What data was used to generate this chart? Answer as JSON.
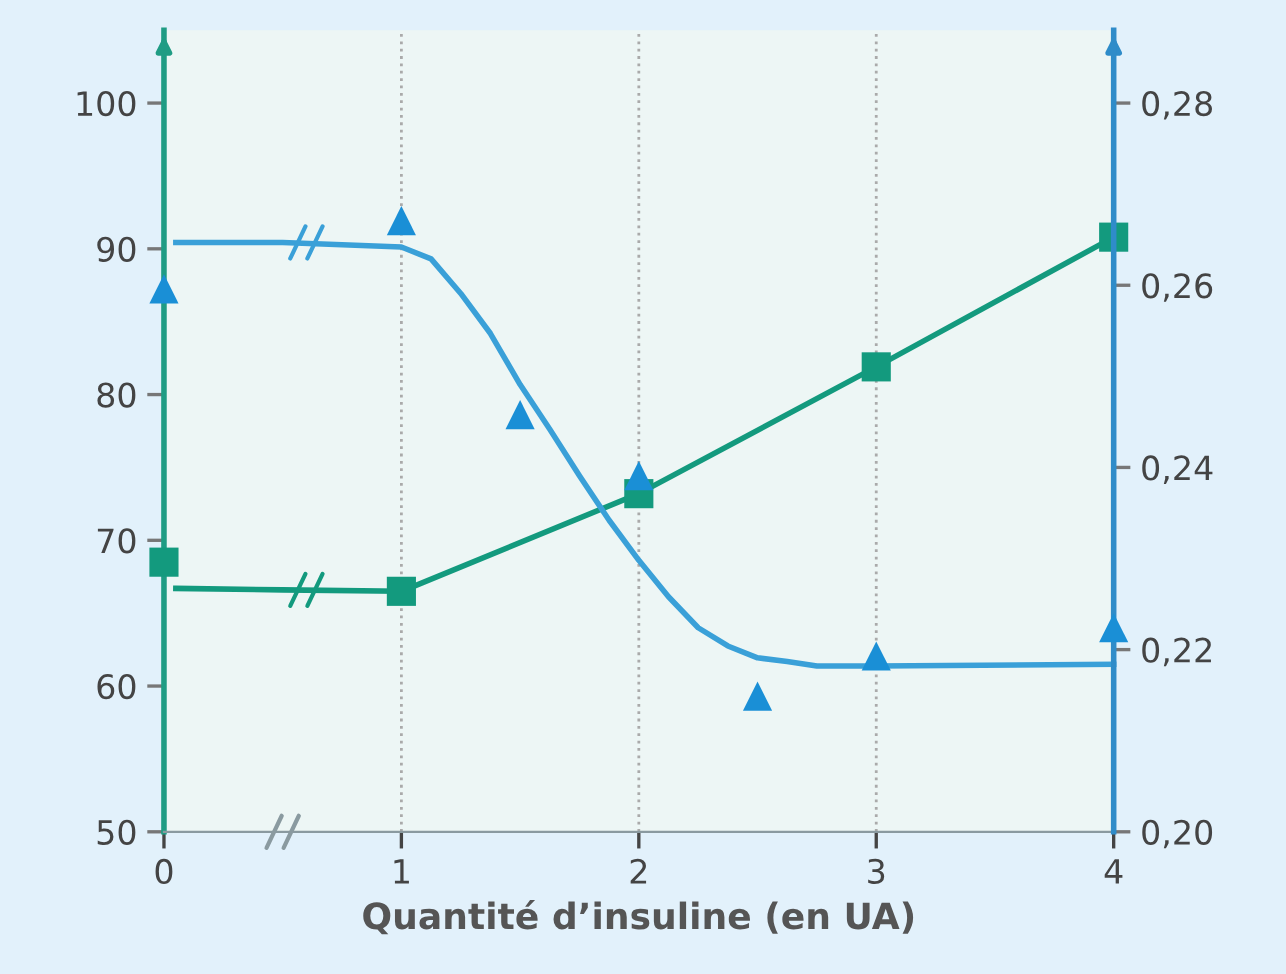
{
  "chart_data": {
    "type": "scatter",
    "xlabel": "Quantité d’insuline (en UA)",
    "xlim": [
      0,
      4
    ],
    "xticks": [
      0,
      1,
      2,
      3,
      4
    ],
    "ylim": [
      50,
      105
    ],
    "yticks": [
      50,
      60,
      70,
      80,
      90,
      100
    ],
    "y2lim": [
      0.2,
      0.288
    ],
    "y2ticks": [
      {
        "value": 0.2,
        "label": "0,20"
      },
      {
        "value": 0.22,
        "label": "0,22"
      },
      {
        "value": 0.24,
        "label": "0,24"
      },
      {
        "value": 0.26,
        "label": "0,26"
      },
      {
        "value": 0.28,
        "label": "0,28"
      }
    ],
    "grid": "x",
    "series": [
      {
        "type": "line",
        "color": "#139a7e",
        "marker": "none",
        "line_style": "solid",
        "x": [
          0.05,
          0.5,
          1,
          2,
          3,
          4
        ],
        "values": [
          66.7,
          66.6,
          66.5,
          73.2,
          81.9,
          90.8
        ]
      },
      {
        "color": "#139a7e",
        "marker": "square",
        "x": [
          0,
          1,
          2,
          3,
          4
        ],
        "values": [
          68.5,
          66.5,
          73.2,
          81.9,
          90.8
        ]
      },
      {
        "type": "line",
        "axis": "y2",
        "color": "#3aa0d8",
        "marker": "none",
        "line_style": "solid",
        "x": [
          0.05,
          0.5,
          1.0,
          1.125,
          1.25,
          1.375,
          1.5,
          1.625,
          1.75,
          1.875,
          2.0,
          2.125,
          2.25,
          2.375,
          2.5,
          2.625,
          2.75,
          3.0,
          4.0
        ],
        "values": [
          0.2647,
          0.2647,
          0.2642,
          0.2629,
          0.2591,
          0.2547,
          0.2491,
          0.2442,
          0.2391,
          0.2342,
          0.2298,
          0.2258,
          0.2224,
          0.2204,
          0.2191,
          0.2187,
          0.2182,
          0.2182,
          0.2184
        ]
      },
      {
        "axis": "y2",
        "color": "#1a8fd6",
        "marker": "triangle",
        "x": [
          0,
          1,
          1.5,
          2,
          2.5,
          3,
          4
        ],
        "values": [
          0.2596,
          0.2671,
          0.2458,
          0.2391,
          0.2149,
          0.2193,
          0.2224
        ]
      }
    ]
  }
}
